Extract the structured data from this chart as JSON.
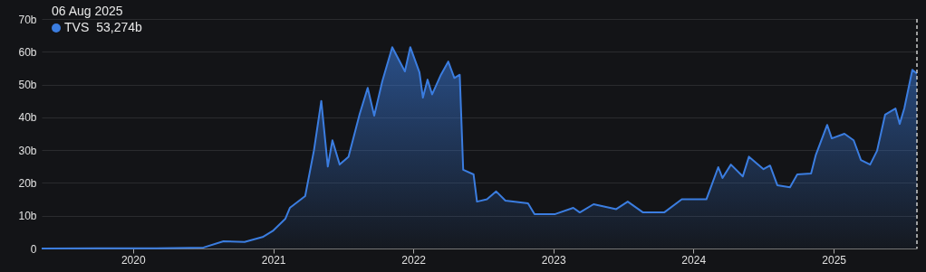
{
  "chart_data": {
    "type": "area",
    "annotations": [
      "06 Aug 2025",
      "53,274b"
    ],
    "x": [
      "2019-05-08",
      "2019-10-01",
      "2020-03-01",
      "2020-06-01",
      "2020-07-03",
      "2020-08-24",
      "2020-10-18",
      "2020-12-04",
      "2021-01-01",
      "2021-02-01",
      "2021-02-13",
      "2021-03-25",
      "2021-04-17",
      "2021-05-06",
      "2021-05-23",
      "2021-06-04",
      "2021-06-23",
      "2021-07-16",
      "2021-08-14",
      "2021-09-04",
      "2021-09-21",
      "2021-10-12",
      "2021-11-07",
      "2021-12-10",
      "2021-12-24",
      "2022-01-17",
      "2022-01-26",
      "2022-02-07",
      "2022-02-19",
      "2022-03-14",
      "2022-04-02",
      "2022-04-18",
      "2022-05-02",
      "2022-05-11",
      "2022-06-07",
      "2022-06-16",
      "2022-07-12",
      "2022-08-05",
      "2022-08-29",
      "2022-10-27",
      "2022-11-13",
      "2023-01-06",
      "2023-02-22",
      "2023-03-11",
      "2023-04-16",
      "2023-06-14",
      "2023-07-14",
      "2023-08-23",
      "2023-10-17",
      "2023-12-02",
      "2024-02-04",
      "2024-03-06",
      "2024-03-17",
      "2024-04-08",
      "2024-05-09",
      "2024-05-25",
      "2024-07-02",
      "2024-07-19",
      "2024-08-07",
      "2024-09-09",
      "2024-09-28",
      "2024-11-03",
      "2024-11-15",
      "2024-12-15",
      "2024-12-27",
      "2025-01-29",
      "2025-02-22",
      "2025-03-13",
      "2025-04-06",
      "2025-04-24",
      "2025-05-15",
      "2025-06-11",
      "2025-06-22",
      "2025-07-04",
      "2025-07-25",
      "2025-08-06"
    ],
    "series": [
      {
        "name": "TVS",
        "color": "#3b7de0",
        "values": [
          0,
          0.1,
          0.1,
          0.2,
          0.3,
          2.2,
          2,
          3.5,
          5.5,
          9,
          12.4,
          16,
          30,
          45,
          25,
          33,
          25.6,
          28,
          41,
          49,
          40.5,
          51,
          61.4,
          54,
          61.4,
          53.7,
          46,
          51.5,
          47,
          53,
          57,
          52,
          53,
          24,
          22.6,
          14.3,
          15,
          17.4,
          14.6,
          13.8,
          10.5,
          10.5,
          12.4,
          11,
          13.5,
          12,
          14.3,
          11,
          11,
          15,
          15,
          24.8,
          21.5,
          25.6,
          22,
          28,
          24.2,
          25.3,
          19.3,
          18.7,
          22.6,
          22.9,
          28.4,
          37.7,
          33.6,
          35,
          33,
          27,
          25.6,
          29.8,
          40.8,
          42.7,
          38,
          42.7,
          54.5,
          53.3
        ]
      }
    ],
    "xlim": [
      "2019-05-08",
      "2025-08-06"
    ],
    "xticks": [
      "2020",
      "2021",
      "2022",
      "2023",
      "2024",
      "2025"
    ],
    "ylim": [
      0,
      70
    ],
    "yticks": [
      0,
      {
        "value": 10,
        "label": "10b"
      },
      {
        "value": 20,
        "label": "20b"
      },
      {
        "value": 30,
        "label": "30b"
      },
      {
        "value": 40,
        "label": "40b"
      },
      {
        "value": 50,
        "label": "50b"
      },
      {
        "value": 60,
        "label": "60b"
      },
      {
        "value": 70,
        "label": "70b"
      }
    ],
    "ref_lines": [
      {
        "axis": "x",
        "value": "2025-08-06",
        "color": "#cccccc",
        "line_style": "dashed"
      }
    ],
    "grid": "y",
    "legend": "top left"
  }
}
